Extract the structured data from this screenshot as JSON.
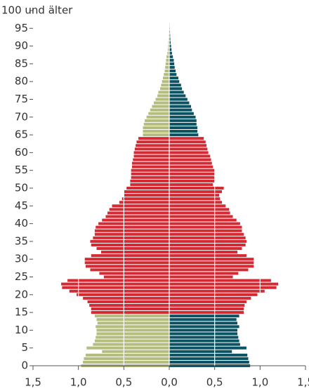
{
  "chart_data": {
    "type": "pyramid",
    "y": [
      0,
      1,
      2,
      3,
      4,
      5,
      6,
      7,
      8,
      9,
      10,
      11,
      12,
      13,
      14,
      15,
      16,
      17,
      18,
      19,
      20,
      21,
      22,
      23,
      24,
      25,
      26,
      27,
      28,
      29,
      30,
      31,
      32,
      33,
      34,
      35,
      36,
      37,
      38,
      39,
      40,
      41,
      42,
      43,
      44,
      45,
      46,
      47,
      48,
      49,
      50,
      51,
      52,
      53,
      54,
      55,
      56,
      57,
      58,
      59,
      60,
      61,
      62,
      63,
      64,
      65,
      66,
      67,
      68,
      69,
      70,
      71,
      72,
      73,
      74,
      75,
      76,
      77,
      78,
      79,
      80,
      81,
      82,
      83,
      84,
      85,
      86,
      87,
      88,
      89,
      90,
      91,
      92,
      93,
      94,
      95,
      96,
      97,
      98,
      99,
      100
    ],
    "ylim": [
      0,
      100
    ],
    "yticks": [
      0,
      5,
      10,
      15,
      20,
      25,
      30,
      35,
      40,
      45,
      50,
      55,
      60,
      65,
      70,
      75,
      80,
      85,
      90,
      95,
      {
        "value": 100,
        "label": "100 und älter"
      }
    ],
    "xlim": [
      -1.5,
      1.5
    ],
    "xticks": [
      {
        "value": -1.5,
        "label": "1,5"
      },
      {
        "value": -1,
        "label": "1,0"
      },
      {
        "value": -0.5,
        "label": "0,5"
      },
      {
        "value": 0,
        "label": "0,0"
      },
      {
        "value": 0.5,
        "label": "0,5"
      },
      {
        "value": 1,
        "label": "1,0"
      },
      {
        "value": 1.5,
        "label": "1,5"
      }
    ],
    "grid": true,
    "highlight_range": [
      15,
      64
    ],
    "series": [
      {
        "side": "left",
        "color": "#d42a33",
        "outer_color": "#b4bd7d",
        "values": [
          0.97,
          0.95,
          0.94,
          0.92,
          0.74,
          0.91,
          0.84,
          0.82,
          0.81,
          0.8,
          0.8,
          0.81,
          0.79,
          0.8,
          0.82,
          0.86,
          0.86,
          0.88,
          0.9,
          0.95,
          1.02,
          1.1,
          1.18,
          1.19,
          1.12,
          0.72,
          0.77,
          0.87,
          0.92,
          0.93,
          0.93,
          0.86,
          0.75,
          0.8,
          0.86,
          0.87,
          0.84,
          0.82,
          0.82,
          0.81,
          0.78,
          0.74,
          0.7,
          0.68,
          0.66,
          0.63,
          0.55,
          0.52,
          0.5,
          0.5,
          0.47,
          0.43,
          0.43,
          0.42,
          0.42,
          0.42,
          0.41,
          0.41,
          0.4,
          0.39,
          0.39,
          0.38,
          0.37,
          0.36,
          0.34,
          0.29,
          0.29,
          0.29,
          0.28,
          0.27,
          0.25,
          0.23,
          0.21,
          0.19,
          0.17,
          0.15,
          0.13,
          0.12,
          0.1,
          0.09,
          0.08,
          0.07,
          0.06,
          0.05,
          0.045,
          0.04,
          0.035,
          0.03,
          0.02,
          0.015,
          0.012,
          0.01,
          0.008,
          0.006,
          0.005,
          0.004,
          0.003,
          0.002,
          0.002,
          0.001,
          0.001
        ]
      },
      {
        "side": "right",
        "color": "#d42a33",
        "outer_color": "#0b5263",
        "values": [
          0.89,
          0.88,
          0.87,
          0.86,
          0.69,
          0.85,
          0.78,
          0.77,
          0.76,
          0.75,
          0.75,
          0.77,
          0.75,
          0.74,
          0.77,
          0.82,
          0.82,
          0.83,
          0.85,
          0.9,
          0.97,
          1.05,
          1.18,
          1.2,
          1.12,
          0.7,
          0.76,
          0.87,
          0.93,
          0.93,
          0.93,
          0.85,
          0.75,
          0.8,
          0.84,
          0.85,
          0.84,
          0.82,
          0.8,
          0.8,
          0.78,
          0.74,
          0.7,
          0.67,
          0.66,
          0.62,
          0.58,
          0.56,
          0.55,
          0.58,
          0.6,
          0.48,
          0.5,
          0.5,
          0.5,
          0.5,
          0.48,
          0.47,
          0.46,
          0.45,
          0.43,
          0.42,
          0.41,
          0.4,
          0.38,
          0.32,
          0.31,
          0.31,
          0.3,
          0.3,
          0.29,
          0.27,
          0.25,
          0.24,
          0.22,
          0.2,
          0.18,
          0.16,
          0.14,
          0.13,
          0.11,
          0.1,
          0.08,
          0.07,
          0.06,
          0.055,
          0.05,
          0.04,
          0.03,
          0.025,
          0.02,
          0.015,
          0.012,
          0.01,
          0.008,
          0.006,
          0.005,
          0.004,
          0.003,
          0.002,
          0.002
        ]
      }
    ]
  }
}
